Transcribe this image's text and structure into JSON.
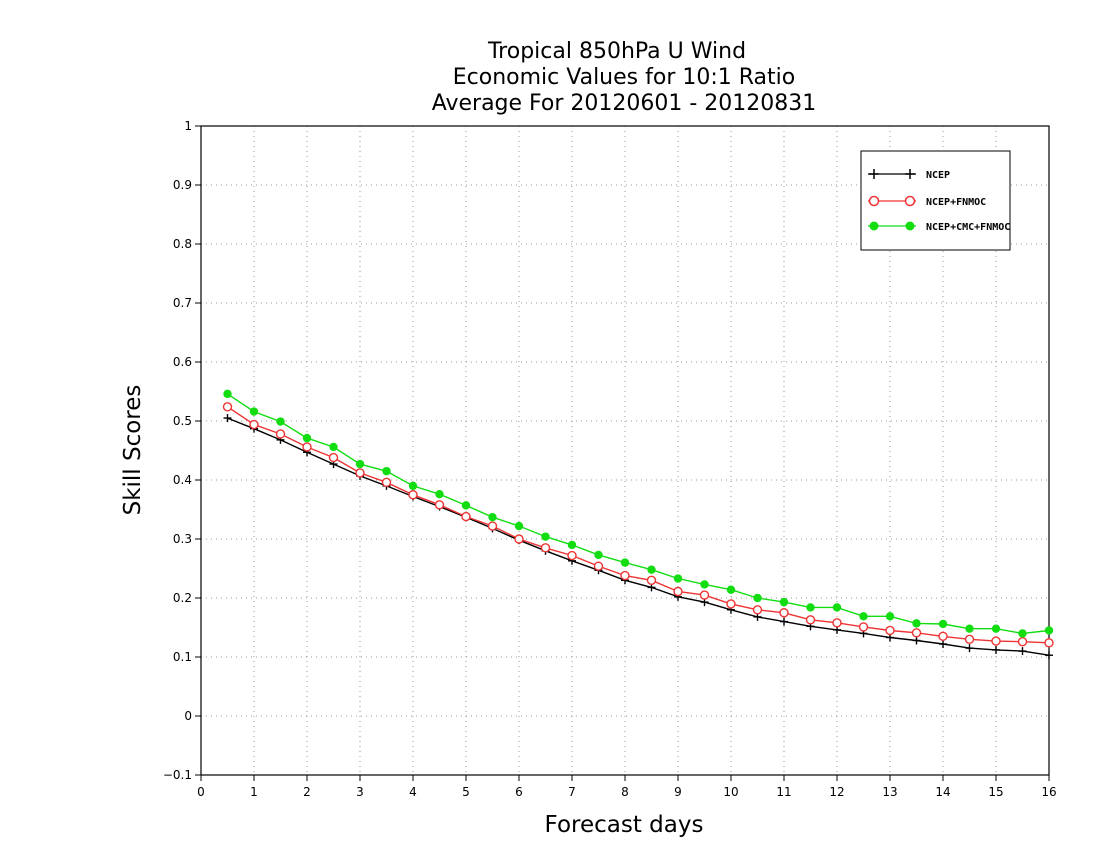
{
  "chart_data": {
    "type": "line",
    "title": [
      "Tropical 850hPa U Wind",
      "Economic Values for 10:1 Ratio",
      "Average For 20120601 - 20120831"
    ],
    "xlabel": "Forecast days",
    "ylabel": "Skill Scores",
    "xlim": [
      0,
      16
    ],
    "ylim": [
      -0.1,
      1
    ],
    "xticks": [
      "0",
      "1",
      "2",
      "3",
      "4",
      "5",
      "6",
      "7",
      "8",
      "9",
      "10",
      "11",
      "12",
      "13",
      "14",
      "15",
      "16"
    ],
    "yticks": [
      "−0.1",
      "0",
      "0.1",
      "0.2",
      "0.3",
      "0.4",
      "0.5",
      "0.6",
      "0.7",
      "0.8",
      "0.9",
      "1"
    ],
    "grid": true,
    "legend_position": "top-right",
    "x": [
      0.5,
      1,
      1.5,
      2,
      2.5,
      3,
      3.5,
      4,
      4.5,
      5,
      5.5,
      6,
      6.5,
      7,
      7.5,
      8,
      8.5,
      9,
      9.5,
      10,
      10.5,
      11,
      11.5,
      12,
      12.5,
      13,
      13.5,
      14,
      14.5,
      15,
      15.5,
      16
    ],
    "series": [
      {
        "name": "NCEP",
        "color": "#000000",
        "marker": "plus",
        "values": [
          0.505,
          0.487,
          0.468,
          0.447,
          0.427,
          0.407,
          0.39,
          0.372,
          0.355,
          0.337,
          0.318,
          0.298,
          0.28,
          0.263,
          0.247,
          0.23,
          0.218,
          0.202,
          0.193,
          0.18,
          0.168,
          0.16,
          0.152,
          0.146,
          0.14,
          0.133,
          0.128,
          0.122,
          0.115,
          0.112,
          0.11,
          0.103
        ]
      },
      {
        "name": "NCEP+FNMOC",
        "color": "#ee3333",
        "marker": "open-circle",
        "values": [
          0.524,
          0.494,
          0.478,
          0.456,
          0.438,
          0.412,
          0.396,
          0.375,
          0.358,
          0.338,
          0.322,
          0.3,
          0.285,
          0.272,
          0.254,
          0.238,
          0.23,
          0.211,
          0.205,
          0.19,
          0.18,
          0.175,
          0.163,
          0.158,
          0.151,
          0.145,
          0.141,
          0.135,
          0.13,
          0.127,
          0.126,
          0.124
        ]
      },
      {
        "name": "NCEP+CMC+FNMOC",
        "color": "#11dd11",
        "marker": "filled-circle",
        "values": [
          0.546,
          0.516,
          0.499,
          0.471,
          0.456,
          0.427,
          0.415,
          0.39,
          0.376,
          0.357,
          0.337,
          0.322,
          0.304,
          0.29,
          0.273,
          0.26,
          0.248,
          0.233,
          0.223,
          0.214,
          0.2,
          0.193,
          0.184,
          0.184,
          0.169,
          0.169,
          0.157,
          0.156,
          0.148,
          0.148,
          0.14,
          0.145
        ]
      }
    ]
  }
}
